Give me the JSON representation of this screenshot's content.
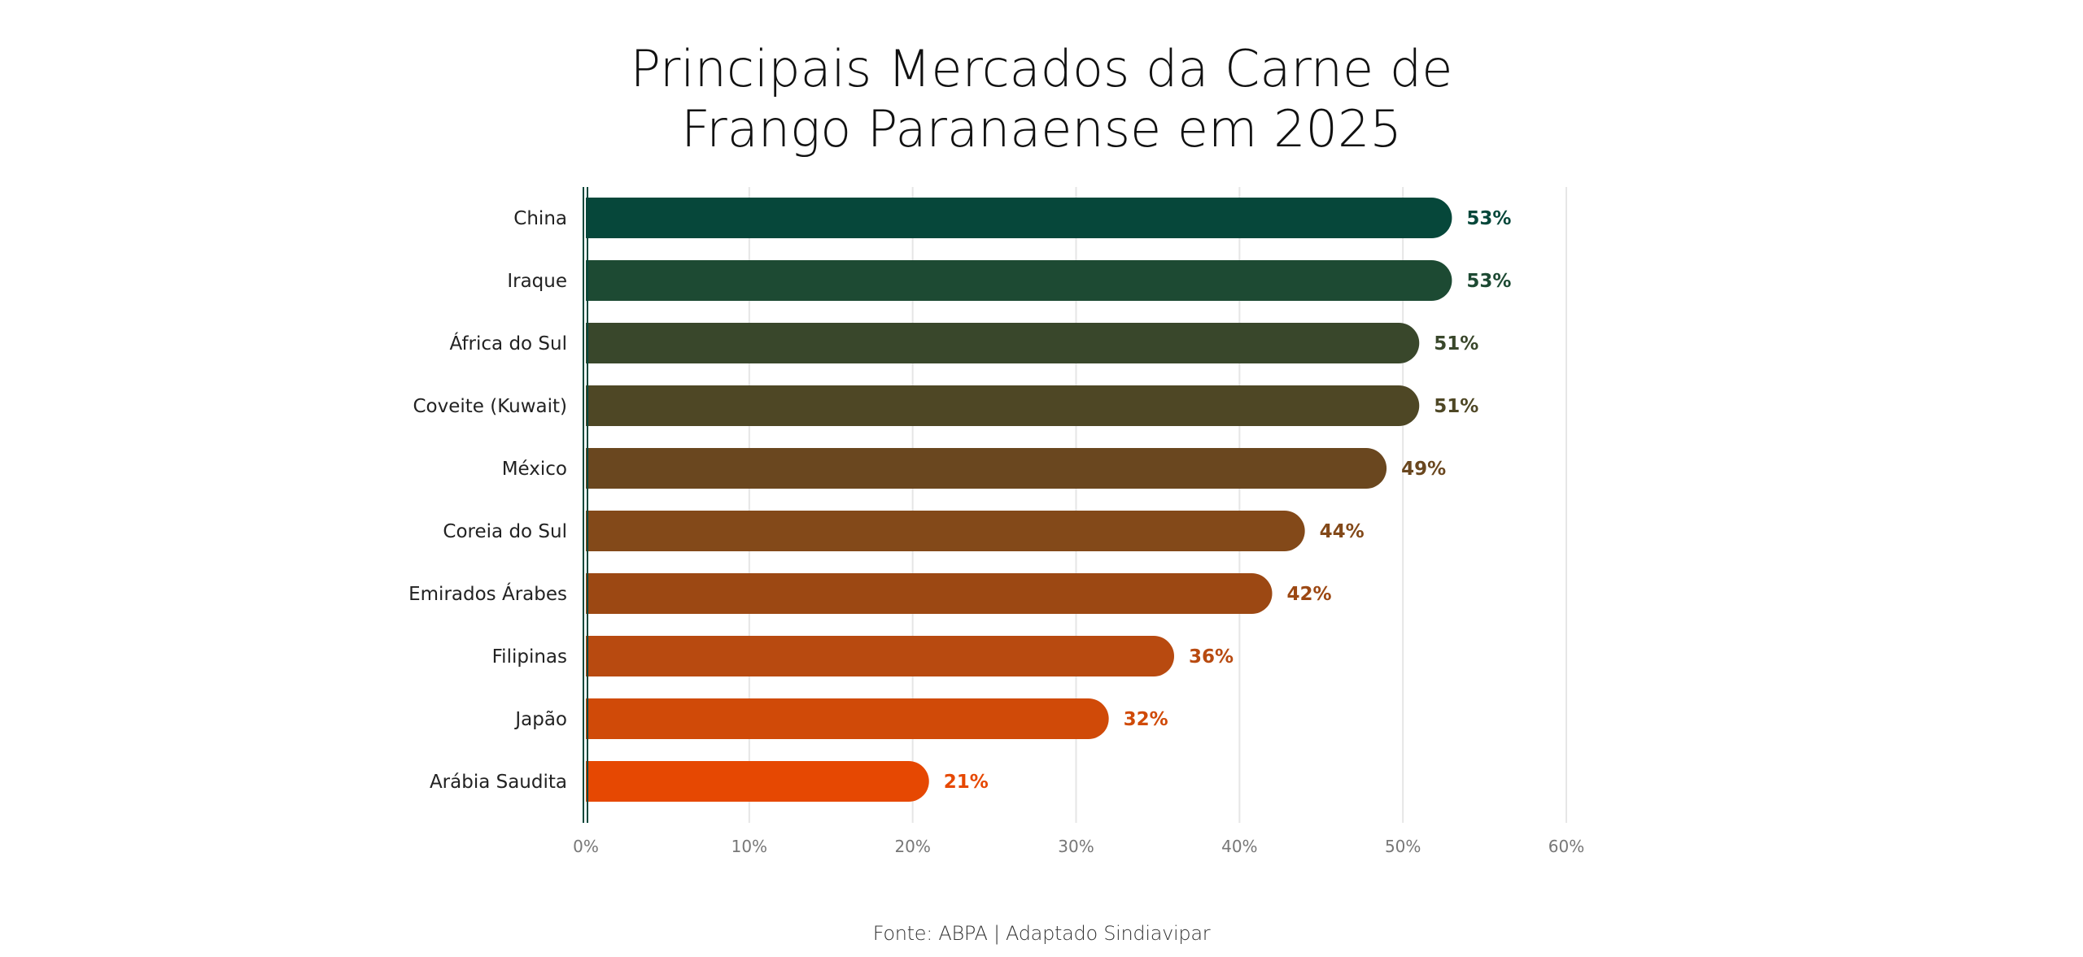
{
  "chart_data": {
    "type": "bar",
    "orientation": "horizontal",
    "title_lines": [
      "Principais Mercados da Carne de",
      "Frango Paranaense em 2025"
    ],
    "categories": [
      "China",
      "Iraque",
      "África do Sul",
      "Coveite (Kuwait)",
      "México",
      "Coreia do Sul",
      "Emirados Árabes",
      "Filipinas",
      "Japão",
      "Arábia Saudita"
    ],
    "values": [
      53,
      53,
      51,
      51,
      49,
      44,
      42,
      36,
      32,
      21
    ],
    "value_labels": [
      "53%",
      "53%",
      "51%",
      "51%",
      "49%",
      "44%",
      "42%",
      "36%",
      "32%",
      "21%"
    ],
    "colors": [
      "#06473a",
      "#1d4a33",
      "#39472b",
      "#4e4725",
      "#6a471f",
      "#834919",
      "#9c4813",
      "#b84a10",
      "#d04a08",
      "#e64802"
    ],
    "xlim": [
      0,
      60
    ],
    "xticks": [
      0,
      10,
      20,
      30,
      40,
      50,
      60
    ],
    "xtick_labels": [
      "0%",
      "10%",
      "20%",
      "30%",
      "40%",
      "50%",
      "60%"
    ],
    "grid": true,
    "legend": "none",
    "source": "Fonte: ABPA | Adaptado Sindiavipar"
  }
}
